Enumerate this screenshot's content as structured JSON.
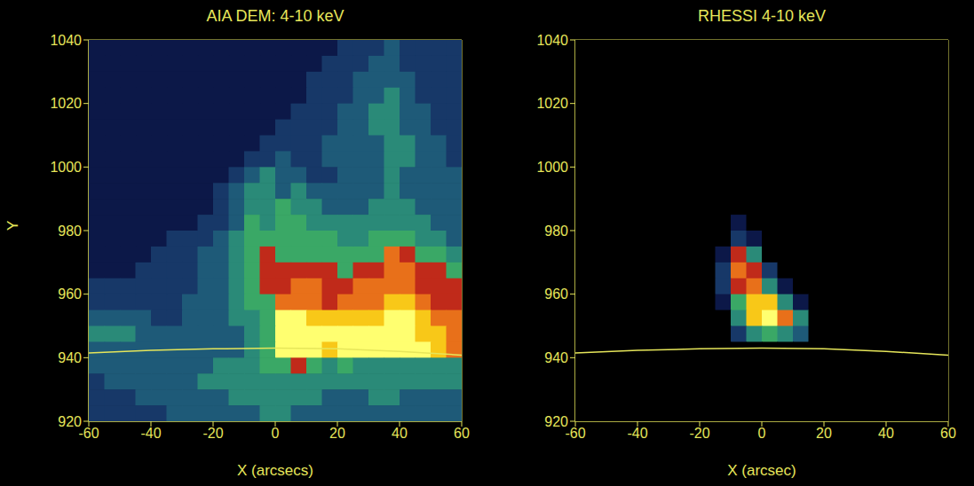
{
  "chart_data": [
    {
      "type": "heatmap",
      "title": "AIA DEM: 4-10 keV",
      "x_label": "X (arcsecs)",
      "y_label": "Y",
      "xlim": [
        -60,
        60
      ],
      "ylim": [
        920,
        1040
      ],
      "xticks": [
        -60,
        -40,
        -20,
        0,
        20,
        40,
        60
      ],
      "yticks": [
        920,
        940,
        960,
        980,
        1000,
        1020,
        1040
      ],
      "grid": false,
      "x": [
        -57.5,
        -52.5,
        -47.5,
        -42.5,
        -37.5,
        -32.5,
        -27.5,
        -22.5,
        -17.5,
        -12.5,
        -7.5,
        -2.5,
        2.5,
        7.5,
        12.5,
        17.5,
        22.5,
        27.5,
        32.5,
        37.5,
        42.5,
        47.5,
        52.5,
        57.5
      ],
      "y": [
        1037.5,
        1032.5,
        1027.5,
        1022.5,
        1017.5,
        1012.5,
        1007.5,
        1002.5,
        997.5,
        992.5,
        987.5,
        982.5,
        977.5,
        972.5,
        967.5,
        962.5,
        957.5,
        952.5,
        947.5,
        942.5,
        937.5,
        932.5,
        927.5,
        922.5
      ],
      "values": [
        [
          1,
          1,
          1,
          1,
          1,
          1,
          1,
          1,
          1,
          1,
          1,
          1,
          1,
          1,
          1,
          1,
          2,
          2,
          2,
          3,
          2,
          2,
          2,
          2
        ],
        [
          1,
          1,
          1,
          1,
          1,
          1,
          1,
          1,
          1,
          1,
          1,
          1,
          1,
          1,
          1,
          2,
          2,
          2,
          3,
          3,
          2,
          2,
          2,
          2
        ],
        [
          1,
          1,
          1,
          1,
          1,
          1,
          1,
          1,
          1,
          1,
          1,
          1,
          1,
          1,
          2,
          2,
          2,
          3,
          3,
          3,
          3,
          2,
          2,
          2
        ],
        [
          1,
          1,
          1,
          1,
          1,
          1,
          1,
          1,
          1,
          1,
          1,
          1,
          1,
          1,
          2,
          2,
          2,
          3,
          3,
          4,
          3,
          2,
          2,
          2
        ],
        [
          1,
          1,
          1,
          1,
          1,
          1,
          1,
          1,
          1,
          1,
          1,
          1,
          1,
          2,
          2,
          2,
          3,
          3,
          4,
          4,
          3,
          3,
          2,
          2
        ],
        [
          1,
          1,
          1,
          1,
          1,
          1,
          1,
          1,
          1,
          1,
          1,
          1,
          2,
          2,
          2,
          2,
          3,
          3,
          4,
          4,
          3,
          3,
          2,
          2
        ],
        [
          1,
          1,
          1,
          1,
          1,
          1,
          1,
          1,
          1,
          1,
          1,
          2,
          2,
          2,
          2,
          3,
          3,
          3,
          3,
          4,
          4,
          3,
          3,
          2
        ],
        [
          1,
          1,
          1,
          1,
          1,
          1,
          1,
          1,
          1,
          1,
          2,
          2,
          3,
          2,
          2,
          3,
          3,
          3,
          3,
          4,
          4,
          3,
          3,
          2
        ],
        [
          1,
          1,
          1,
          1,
          1,
          1,
          1,
          1,
          1,
          2,
          3,
          4,
          3,
          3,
          2,
          2,
          3,
          3,
          3,
          4,
          3,
          3,
          3,
          3
        ],
        [
          1,
          1,
          1,
          1,
          1,
          1,
          1,
          1,
          2,
          3,
          4,
          4,
          3,
          4,
          3,
          3,
          3,
          3,
          3,
          4,
          3,
          3,
          3,
          3
        ],
        [
          1,
          1,
          1,
          1,
          1,
          1,
          1,
          1,
          2,
          3,
          4,
          4,
          5,
          4,
          4,
          3,
          3,
          3,
          4,
          4,
          4,
          3,
          3,
          3
        ],
        [
          1,
          1,
          1,
          1,
          1,
          1,
          1,
          2,
          2,
          3,
          5,
          4,
          5,
          5,
          4,
          4,
          4,
          4,
          4,
          4,
          4,
          4,
          3,
          3
        ],
        [
          1,
          1,
          1,
          1,
          1,
          2,
          2,
          2,
          3,
          4,
          5,
          5,
          5,
          5,
          5,
          5,
          4,
          4,
          5,
          5,
          5,
          4,
          4,
          3
        ],
        [
          1,
          1,
          1,
          1,
          2,
          2,
          2,
          3,
          3,
          4,
          5,
          6,
          5,
          5,
          5,
          5,
          5,
          5,
          5,
          7,
          6,
          5,
          5,
          4
        ],
        [
          1,
          1,
          1,
          2,
          2,
          2,
          2,
          3,
          3,
          4,
          5,
          6,
          6,
          6,
          6,
          6,
          5,
          6,
          6,
          7,
          7,
          6,
          6,
          5
        ],
        [
          2,
          2,
          2,
          2,
          2,
          2,
          2,
          3,
          3,
          4,
          5,
          6,
          6,
          7,
          7,
          6,
          6,
          7,
          7,
          7,
          7,
          6,
          6,
          6
        ],
        [
          2,
          2,
          2,
          2,
          2,
          2,
          3,
          3,
          3,
          4,
          5,
          5,
          7,
          7,
          7,
          6,
          7,
          7,
          7,
          8,
          8,
          7,
          6,
          6
        ],
        [
          3,
          3,
          3,
          3,
          2,
          2,
          3,
          3,
          3,
          4,
          4,
          5,
          9,
          9,
          8,
          8,
          8,
          8,
          8,
          9,
          9,
          8,
          7,
          7
        ],
        [
          4,
          4,
          4,
          3,
          3,
          3,
          3,
          3,
          3,
          3,
          4,
          5,
          9,
          9,
          9,
          9,
          9,
          9,
          9,
          9,
          9,
          8,
          8,
          7
        ],
        [
          3,
          3,
          3,
          3,
          3,
          3,
          3,
          3,
          3,
          3,
          4,
          5,
          9,
          9,
          9,
          8,
          9,
          9,
          9,
          9,
          9,
          9,
          8,
          7
        ],
        [
          3,
          3,
          3,
          3,
          3,
          3,
          3,
          3,
          4,
          4,
          4,
          5,
          5,
          6,
          5,
          4,
          5,
          4,
          4,
          4,
          4,
          4,
          4,
          4
        ],
        [
          2,
          3,
          3,
          3,
          3,
          3,
          3,
          4,
          4,
          4,
          4,
          4,
          4,
          4,
          4,
          4,
          4,
          4,
          4,
          4,
          4,
          4,
          4,
          4
        ],
        [
          2,
          2,
          2,
          3,
          3,
          3,
          3,
          3,
          3,
          4,
          4,
          4,
          4,
          4,
          4,
          3,
          3,
          3,
          4,
          4,
          3,
          3,
          3,
          3
        ],
        [
          2,
          2,
          2,
          2,
          2,
          3,
          3,
          3,
          3,
          3,
          3,
          4,
          4,
          3,
          3,
          3,
          3,
          3,
          3,
          3,
          3,
          3,
          3,
          3
        ]
      ],
      "series": [
        {
          "type": "line",
          "color": "#e6e65a",
          "x": [
            -60,
            -40,
            -20,
            0,
            20,
            40,
            60
          ],
          "values": [
            941.5,
            942.3,
            942.8,
            943,
            942.8,
            942,
            940.8
          ]
        }
      ]
    },
    {
      "type": "heatmap",
      "title": "RHESSI 4-10 keV",
      "x_label": "X (arcsec)",
      "xlim": [
        -60,
        60
      ],
      "ylim": [
        920,
        1040
      ],
      "xticks": [
        -60,
        -40,
        -20,
        0,
        20,
        40,
        60
      ],
      "yticks": [
        920,
        940,
        960,
        980,
        1000,
        1020,
        1040
      ],
      "grid": false,
      "x": [
        -57.5,
        -52.5,
        -47.5,
        -42.5,
        -37.5,
        -32.5,
        -27.5,
        -22.5,
        -17.5,
        -12.5,
        -7.5,
        -2.5,
        2.5,
        7.5,
        12.5,
        17.5,
        22.5,
        27.5,
        32.5,
        37.5,
        42.5,
        47.5,
        52.5,
        57.5
      ],
      "y": [
        1037.5,
        1032.5,
        1027.5,
        1022.5,
        1017.5,
        1012.5,
        1007.5,
        1002.5,
        997.5,
        992.5,
        987.5,
        982.5,
        977.5,
        972.5,
        967.5,
        962.5,
        957.5,
        952.5,
        947.5,
        942.5,
        937.5,
        932.5,
        927.5,
        922.5
      ],
      "values": [
        [
          0,
          0,
          0,
          0,
          0,
          0,
          0,
          0,
          0,
          0,
          0,
          0,
          0,
          0,
          0,
          0,
          0,
          0,
          0,
          0,
          0,
          0,
          0,
          0
        ],
        [
          0,
          0,
          0,
          0,
          0,
          0,
          0,
          0,
          0,
          0,
          0,
          0,
          0,
          0,
          0,
          0,
          0,
          0,
          0,
          0,
          0,
          0,
          0,
          0
        ],
        [
          0,
          0,
          0,
          0,
          0,
          0,
          0,
          0,
          0,
          0,
          0,
          0,
          0,
          0,
          0,
          0,
          0,
          0,
          0,
          0,
          0,
          0,
          0,
          0
        ],
        [
          0,
          0,
          0,
          0,
          0,
          0,
          0,
          0,
          0,
          0,
          0,
          0,
          0,
          0,
          0,
          0,
          0,
          0,
          0,
          0,
          0,
          0,
          0,
          0
        ],
        [
          0,
          0,
          0,
          0,
          0,
          0,
          0,
          0,
          0,
          0,
          0,
          0,
          0,
          0,
          0,
          0,
          0,
          0,
          0,
          0,
          0,
          0,
          0,
          0
        ],
        [
          0,
          0,
          0,
          0,
          0,
          0,
          0,
          0,
          0,
          0,
          0,
          0,
          0,
          0,
          0,
          0,
          0,
          0,
          0,
          0,
          0,
          0,
          0,
          0
        ],
        [
          0,
          0,
          0,
          0,
          0,
          0,
          0,
          0,
          0,
          0,
          0,
          0,
          0,
          0,
          0,
          0,
          0,
          0,
          0,
          0,
          0,
          0,
          0,
          0
        ],
        [
          0,
          0,
          0,
          0,
          0,
          0,
          0,
          0,
          0,
          0,
          0,
          0,
          0,
          0,
          0,
          0,
          0,
          0,
          0,
          0,
          0,
          0,
          0,
          0
        ],
        [
          0,
          0,
          0,
          0,
          0,
          0,
          0,
          0,
          0,
          0,
          0,
          0,
          0,
          0,
          0,
          0,
          0,
          0,
          0,
          0,
          0,
          0,
          0,
          0
        ],
        [
          0,
          0,
          0,
          0,
          0,
          0,
          0,
          0,
          0,
          0,
          0,
          0,
          0,
          0,
          0,
          0,
          0,
          0,
          0,
          0,
          0,
          0,
          0,
          0
        ],
        [
          0,
          0,
          0,
          0,
          0,
          0,
          0,
          0,
          0,
          0,
          0,
          0,
          0,
          0,
          0,
          0,
          0,
          0,
          0,
          0,
          0,
          0,
          0,
          0
        ],
        [
          0,
          0,
          0,
          0,
          0,
          0,
          0,
          0,
          0,
          0,
          1,
          0,
          0,
          0,
          0,
          0,
          0,
          0,
          0,
          0,
          0,
          0,
          0,
          0
        ],
        [
          0,
          0,
          0,
          0,
          0,
          0,
          0,
          0,
          0,
          0,
          2,
          1,
          0,
          0,
          0,
          0,
          0,
          0,
          0,
          0,
          0,
          0,
          0,
          0
        ],
        [
          0,
          0,
          0,
          0,
          0,
          0,
          0,
          0,
          0,
          1,
          6,
          4,
          0,
          0,
          0,
          0,
          0,
          0,
          0,
          0,
          0,
          0,
          0,
          0
        ],
        [
          0,
          0,
          0,
          0,
          0,
          0,
          0,
          0,
          0,
          2,
          7,
          6,
          2,
          0,
          0,
          0,
          0,
          0,
          0,
          0,
          0,
          0,
          0,
          0
        ],
        [
          0,
          0,
          0,
          0,
          0,
          0,
          0,
          0,
          0,
          2,
          6,
          7,
          4,
          1,
          0,
          0,
          0,
          0,
          0,
          0,
          0,
          0,
          0,
          0
        ],
        [
          0,
          0,
          0,
          0,
          0,
          0,
          0,
          0,
          0,
          1,
          5,
          8,
          8,
          4,
          1,
          0,
          0,
          0,
          0,
          0,
          0,
          0,
          0,
          0
        ],
        [
          0,
          0,
          0,
          0,
          0,
          0,
          0,
          0,
          0,
          0,
          4,
          8,
          9,
          7,
          4,
          0,
          0,
          0,
          0,
          0,
          0,
          0,
          0,
          0
        ],
        [
          0,
          0,
          0,
          0,
          0,
          0,
          0,
          0,
          0,
          0,
          2,
          4,
          5,
          4,
          3,
          0,
          0,
          0,
          0,
          0,
          0,
          0,
          0,
          0
        ],
        [
          0,
          0,
          0,
          0,
          0,
          0,
          0,
          0,
          0,
          0,
          0,
          0,
          0,
          0,
          0,
          0,
          0,
          0,
          0,
          0,
          0,
          0,
          0,
          0
        ],
        [
          0,
          0,
          0,
          0,
          0,
          0,
          0,
          0,
          0,
          0,
          0,
          0,
          0,
          0,
          0,
          0,
          0,
          0,
          0,
          0,
          0,
          0,
          0,
          0
        ],
        [
          0,
          0,
          0,
          0,
          0,
          0,
          0,
          0,
          0,
          0,
          0,
          0,
          0,
          0,
          0,
          0,
          0,
          0,
          0,
          0,
          0,
          0,
          0,
          0
        ],
        [
          0,
          0,
          0,
          0,
          0,
          0,
          0,
          0,
          0,
          0,
          0,
          0,
          0,
          0,
          0,
          0,
          0,
          0,
          0,
          0,
          0,
          0,
          0,
          0
        ],
        [
          0,
          0,
          0,
          0,
          0,
          0,
          0,
          0,
          0,
          0,
          0,
          0,
          0,
          0,
          0,
          0,
          0,
          0,
          0,
          0,
          0,
          0,
          0,
          0
        ]
      ],
      "series": [
        {
          "type": "line",
          "color": "#e6e65a",
          "x": [
            -60,
            -40,
            -20,
            0,
            20,
            40,
            60
          ],
          "values": [
            941.5,
            942.3,
            942.8,
            943,
            942.8,
            942,
            940.8
          ]
        }
      ]
    }
  ]
}
